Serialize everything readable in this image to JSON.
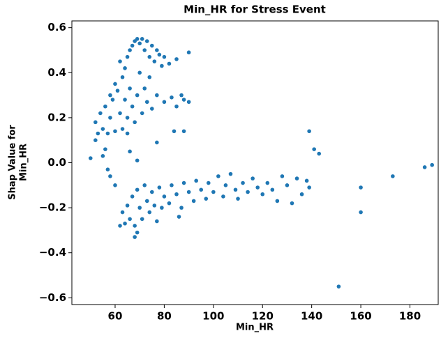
{
  "chart_data": {
    "type": "scatter",
    "title": "Min_HR for Stress Event",
    "x_label": "Min_HR",
    "y_label": [
      "Shap Value for",
      "Min_HR"
    ],
    "xlim": [
      42.4,
      191.5
    ],
    "ylim": [
      -0.63,
      0.63
    ],
    "xticks": [
      60,
      80,
      100,
      120,
      140,
      160,
      180
    ],
    "yticks": [
      {
        "value": -0.6,
        "label": "−0.6"
      },
      {
        "value": -0.4,
        "label": "−0.4"
      },
      {
        "value": -0.2,
        "label": "−0.2"
      },
      {
        "value": 0,
        "label": "0.0"
      },
      0.2,
      0.4,
      0.6
    ],
    "series": [
      {
        "color": "#1f77b4",
        "x": [
          52,
          53,
          54,
          55,
          56,
          57,
          58,
          59,
          60,
          61,
          62,
          63,
          63,
          64,
          64,
          65,
          65,
          66,
          66,
          67,
          67,
          68,
          68,
          69,
          69,
          70,
          70,
          71,
          71,
          72,
          72,
          73,
          73,
          74,
          74,
          75,
          75,
          76,
          77,
          77,
          78,
          79,
          80,
          80,
          82,
          83,
          85,
          85,
          87,
          88,
          90,
          90,
          62,
          60,
          58,
          62,
          63,
          64,
          65,
          66,
          67,
          68,
          69,
          70,
          71,
          72,
          73,
          74,
          75,
          76,
          78,
          79,
          80,
          82,
          83,
          85,
          87,
          88,
          90,
          92,
          93,
          95,
          97,
          98,
          100,
          102,
          104,
          105,
          107,
          109,
          110,
          112,
          114,
          116,
          118,
          120,
          122,
          124,
          126,
          128,
          130,
          132,
          134,
          136,
          138,
          139,
          86,
          77,
          50,
          52,
          55,
          57,
          58,
          60,
          56,
          65,
          84,
          88,
          77,
          69,
          139,
          141,
          143,
          151,
          160,
          160,
          173,
          186,
          189,
          68,
          69,
          66
        ],
        "y": [
          0.18,
          0.13,
          0.22,
          0.15,
          0.25,
          0.13,
          0.2,
          0.28,
          0.14,
          0.32,
          0.22,
          0.38,
          0.15,
          0.42,
          0.28,
          0.47,
          0.2,
          0.5,
          0.33,
          0.52,
          0.25,
          0.54,
          0.18,
          0.55,
          0.3,
          0.53,
          0.4,
          0.55,
          0.22,
          0.5,
          0.33,
          0.54,
          0.27,
          0.47,
          0.38,
          0.52,
          0.24,
          0.45,
          0.5,
          0.3,
          0.48,
          0.43,
          0.47,
          0.27,
          0.44,
          0.29,
          0.46,
          0.25,
          0.3,
          0.28,
          0.49,
          0.27,
          0.45,
          0.35,
          0.3,
          -0.28,
          -0.22,
          -0.27,
          -0.19,
          -0.25,
          -0.15,
          -0.28,
          -0.12,
          -0.2,
          -0.25,
          -0.1,
          -0.17,
          -0.22,
          -0.13,
          -0.19,
          -0.11,
          -0.2,
          -0.15,
          -0.18,
          -0.1,
          -0.14,
          -0.2,
          -0.09,
          -0.13,
          -0.17,
          -0.08,
          -0.12,
          -0.16,
          -0.09,
          -0.13,
          -0.06,
          -0.15,
          -0.1,
          -0.05,
          -0.12,
          -0.16,
          -0.09,
          -0.13,
          -0.07,
          -0.11,
          -0.14,
          -0.09,
          -0.12,
          -0.17,
          -0.06,
          -0.1,
          -0.18,
          -0.07,
          -0.14,
          -0.08,
          -0.11,
          -0.24,
          -0.26,
          0.02,
          0.1,
          0.03,
          -0.03,
          -0.06,
          -0.1,
          0.06,
          0.13,
          0.14,
          0.14,
          0.09,
          0.01,
          0.14,
          0.06,
          0.04,
          -0.55,
          -0.11,
          -0.22,
          -0.06,
          -0.02,
          -0.01,
          -0.33,
          -0.31,
          0.05
        ]
      }
    ]
  }
}
